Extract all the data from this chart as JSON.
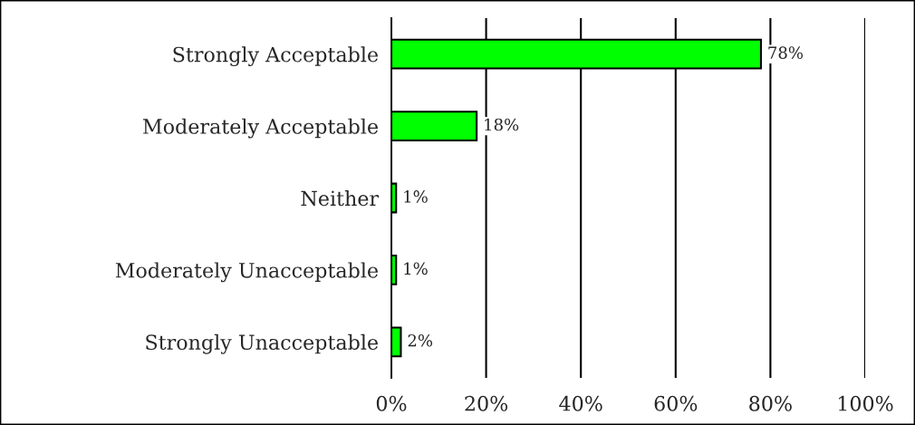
{
  "chart_data": {
    "type": "bar",
    "orientation": "horizontal",
    "categories": [
      "Strongly Acceptable",
      "Moderately Acceptable",
      "Neither",
      "Moderately Unacceptable",
      "Strongly Unacceptable"
    ],
    "values": [
      78,
      18,
      1,
      1,
      2
    ],
    "value_labels": [
      "78%",
      "18%",
      "1%",
      "1%",
      "2%"
    ],
    "color": "#00ff00",
    "xlim": [
      0,
      100
    ],
    "xticks": [
      {
        "value": 0,
        "label": "0%"
      },
      {
        "value": 20,
        "label": "20%"
      },
      {
        "value": 40,
        "label": "40%"
      },
      {
        "value": 60,
        "label": "60%"
      },
      {
        "value": 80,
        "label": "80%"
      },
      {
        "value": 100,
        "label": "100%"
      }
    ],
    "grid": "x",
    "legend": false
  }
}
